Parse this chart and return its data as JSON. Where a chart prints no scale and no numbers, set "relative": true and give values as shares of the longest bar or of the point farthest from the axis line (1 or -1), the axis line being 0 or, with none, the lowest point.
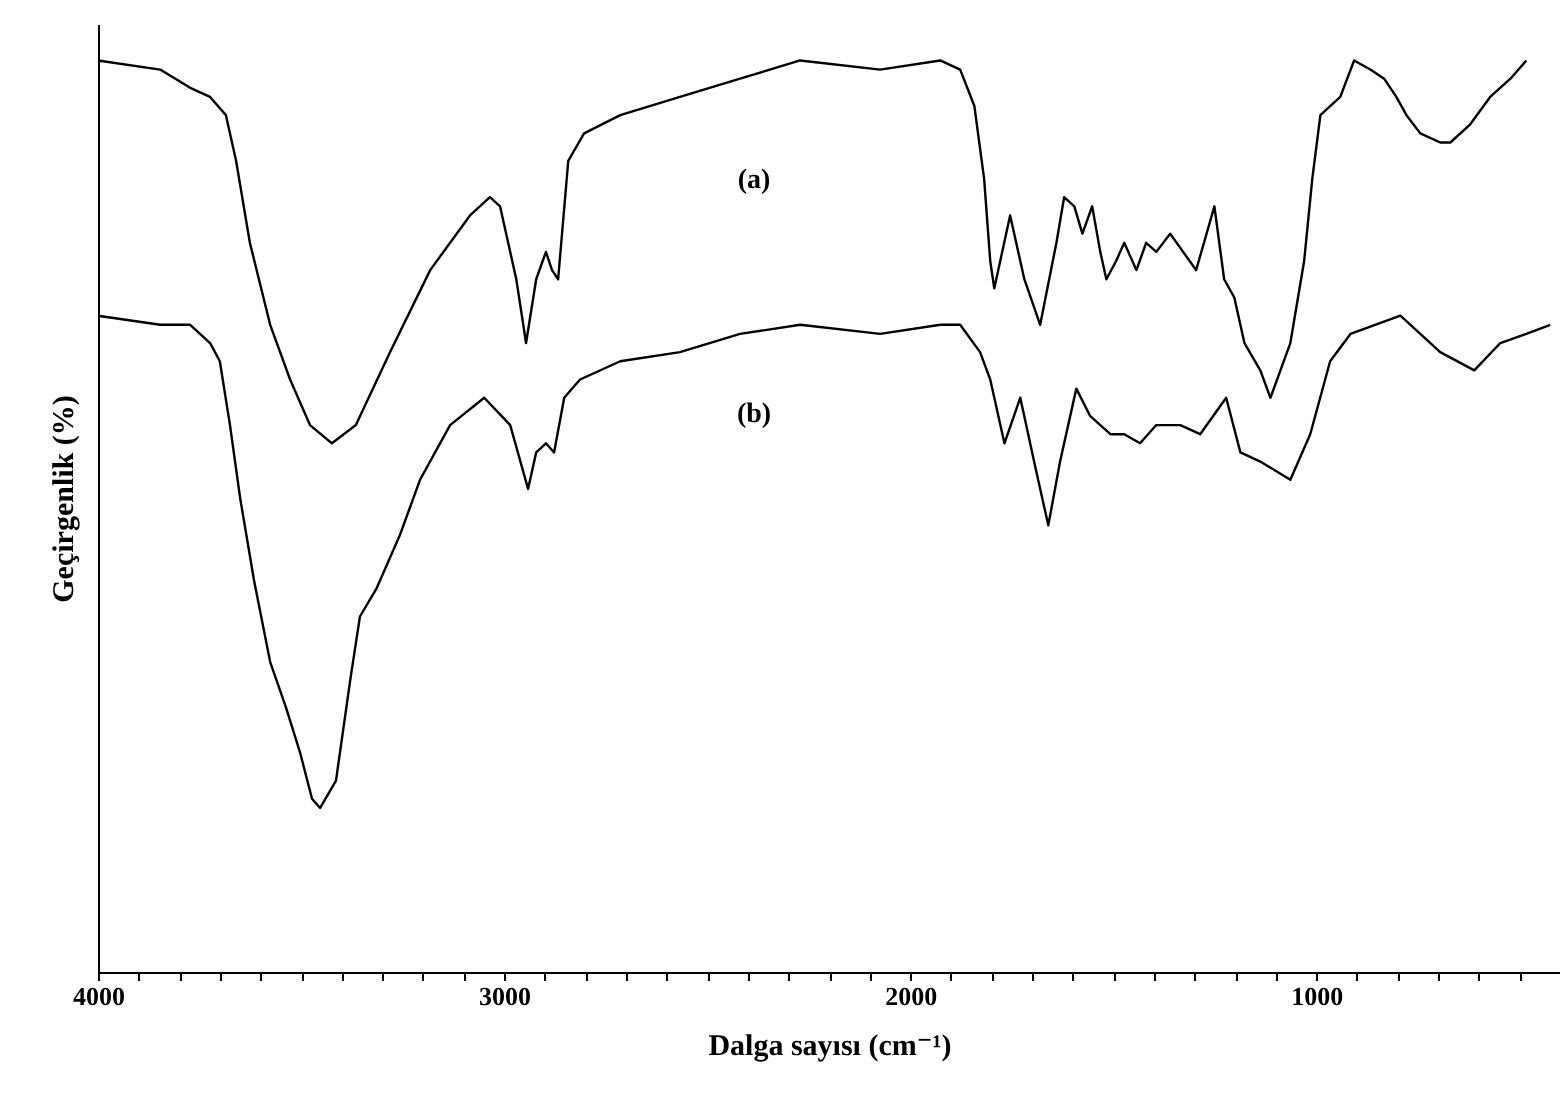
{
  "chart_data": {
    "type": "line",
    "relative": true,
    "xlabel": "Dalga sayısı (cm⁻¹)",
    "ylabel": "Geçirgenlik (%)",
    "xlim": [
      4000,
      400
    ],
    "xticks": [
      4000,
      {
        "value": 3900,
        "label": null
      },
      {
        "value": 3800,
        "label": null
      },
      {
        "value": 3700,
        "label": null
      },
      {
        "value": 3600,
        "label": null
      },
      {
        "value": 3500,
        "label": null
      },
      {
        "value": 3400,
        "label": null
      },
      {
        "value": 3300,
        "label": null
      },
      {
        "value": 3200,
        "label": null
      },
      {
        "value": 3100,
        "label": null
      },
      3000,
      {
        "value": 2900,
        "label": null
      },
      {
        "value": 2800,
        "label": null
      },
      {
        "value": 2700,
        "label": null
      },
      {
        "value": 2600,
        "label": null
      },
      {
        "value": 2500,
        "label": null
      },
      {
        "value": 2400,
        "label": null
      },
      {
        "value": 2300,
        "label": null
      },
      {
        "value": 2200,
        "label": null
      },
      {
        "value": 2100,
        "label": null
      },
      2000,
      {
        "value": 1900,
        "label": null
      },
      {
        "value": 1800,
        "label": null
      },
      {
        "value": 1700,
        "label": null
      },
      {
        "value": 1600,
        "label": null
      },
      {
        "value": 1500,
        "label": null
      },
      {
        "value": 1400,
        "label": null
      },
      {
        "value": 1300,
        "label": null
      },
      {
        "value": 1200,
        "label": null
      },
      {
        "value": 1100,
        "label": null
      },
      1000,
      {
        "value": 900,
        "label": null
      },
      {
        "value": 800,
        "label": null
      },
      {
        "value": 700,
        "label": null
      },
      {
        "value": 600,
        "label": null
      },
      {
        "value": 500,
        "label": null
      }
    ],
    "grid": false,
    "marker": "none",
    "line_style": "solid",
    "series": [
      {
        "color": "#000000",
        "x": [
          4000,
          3847,
          3773,
          3724,
          3685,
          3660,
          3626,
          3576,
          3527,
          3478,
          3424,
          3365,
          3281,
          3182,
          3084,
          3035,
          3010,
          2970,
          2946,
          2921,
          2897,
          2882,
          2867,
          2842,
          2803,
          2714,
          2567,
          2419,
          2271,
          2074,
          1926,
          1877,
          1842,
          1818,
          1803,
          1793,
          1754,
          1719,
          1680,
          1640,
          1621,
          1596,
          1576,
          1552,
          1532,
          1517,
          1493,
          1473,
          1443,
          1419,
          1394,
          1360,
          1296,
          1251,
          1227,
          1202,
          1177,
          1138,
          1113,
          1064,
          1030,
          1010,
          990,
          966,
          941,
          907,
          867,
          833,
          803,
          778,
          744,
          695,
          670,
          621,
          572,
          522,
          483
        ],
        "values": [
          1.0,
          0.99,
          0.97,
          0.96,
          0.94,
          0.89,
          0.8,
          0.71,
          0.65,
          0.6,
          0.58,
          0.6,
          0.68,
          0.77,
          0.83,
          0.85,
          0.84,
          0.76,
          0.69,
          0.76,
          0.79,
          0.77,
          0.76,
          0.89,
          0.92,
          0.94,
          0.96,
          0.98,
          1.0,
          0.99,
          1.0,
          0.99,
          0.95,
          0.87,
          0.78,
          0.75,
          0.83,
          0.76,
          0.71,
          0.8,
          0.85,
          0.84,
          0.81,
          0.84,
          0.79,
          0.76,
          0.78,
          0.8,
          0.77,
          0.8,
          0.79,
          0.81,
          0.77,
          0.84,
          0.76,
          0.74,
          0.69,
          0.66,
          0.63,
          0.69,
          0.78,
          0.87,
          0.94,
          0.95,
          0.96,
          1.0,
          0.99,
          0.98,
          0.96,
          0.94,
          0.92,
          0.91,
          0.91,
          0.93,
          0.96,
          0.98,
          1.0
        ]
      },
      {
        "color": "#000000",
        "x": [
          4000,
          3847,
          3773,
          3724,
          3700,
          3675,
          3650,
          3616,
          3576,
          3537,
          3502,
          3473,
          3453,
          3414,
          3379,
          3355,
          3315,
          3256,
          3207,
          3133,
          3049,
          2985,
          2941,
          2921,
          2897,
          2877,
          2852,
          2813,
          2714,
          2567,
          2419,
          2271,
          2074,
          1926,
          1877,
          1828,
          1803,
          1768,
          1729,
          1690,
          1660,
          1631,
          1591,
          1557,
          1532,
          1507,
          1473,
          1434,
          1394,
          1335,
          1286,
          1222,
          1187,
          1138,
          1064,
          1015,
          966,
          916,
          793,
          744,
          695,
          611,
          547,
          483,
          424
        ],
        "values": [
          0.72,
          0.71,
          0.71,
          0.69,
          0.67,
          0.6,
          0.52,
          0.43,
          0.34,
          0.29,
          0.24,
          0.19,
          0.18,
          0.21,
          0.32,
          0.39,
          0.42,
          0.48,
          0.54,
          0.6,
          0.63,
          0.6,
          0.53,
          0.57,
          0.58,
          0.57,
          0.63,
          0.65,
          0.67,
          0.68,
          0.7,
          0.71,
          0.7,
          0.71,
          0.71,
          0.68,
          0.65,
          0.58,
          0.63,
          0.55,
          0.49,
          0.56,
          0.64,
          0.61,
          0.6,
          0.59,
          0.59,
          0.58,
          0.6,
          0.6,
          0.59,
          0.63,
          0.57,
          0.56,
          0.54,
          0.59,
          0.67,
          0.7,
          0.72,
          0.7,
          0.68,
          0.66,
          0.69,
          0.7,
          0.71
        ]
      }
    ],
    "annotations": [
      "(a)",
      "(b)"
    ]
  }
}
